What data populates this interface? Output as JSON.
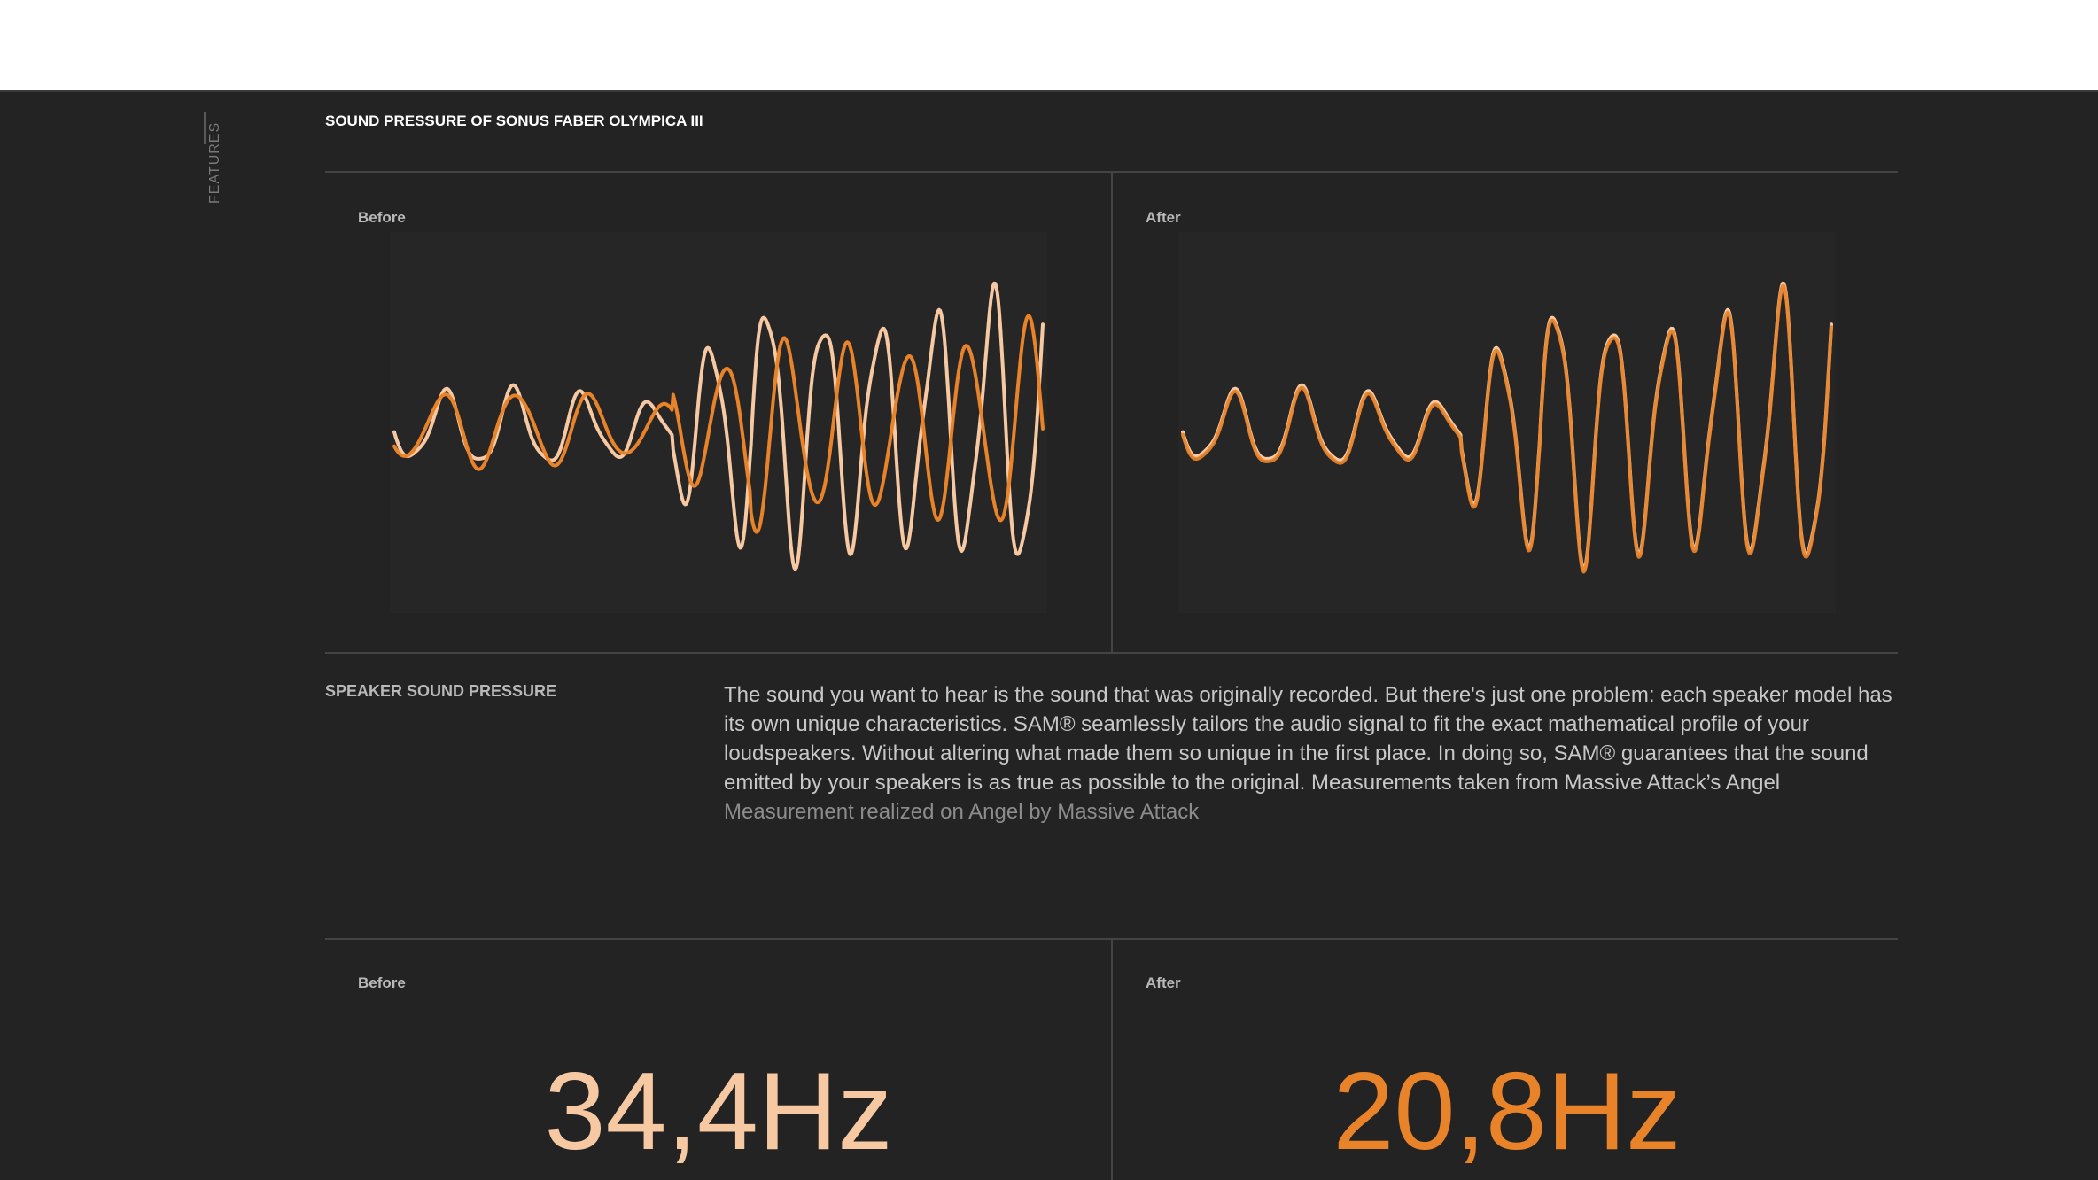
{
  "colors": {
    "background": "#232323",
    "accent": "#e8832a",
    "accent_light": "#f6c9a3",
    "line": "#444444"
  },
  "sidebar": {
    "label": "FEATURES"
  },
  "section": {
    "title": "SOUND PRESSURE OF SONUS FABER OLYMPICA III"
  },
  "charts": {
    "before_label": "Before",
    "after_label": "After"
  },
  "description": {
    "title": "SPEAKER SOUND PRESSURE",
    "body": "The sound you want to hear is the sound that was originally recorded. But there's just one problem: each speaker model has its own unique characteristics. SAM® seamlessly tailors the audio signal to fit the exact mathematical profile of your loudspeakers. Without altering what made them so unique in the first place. In doing so, SAM® guarantees that the sound emitted by your speakers is as true as possible to the original. Measurements taken from Massive Attack’s Angel",
    "note": "Measurement realized on Angel by Massive Attack"
  },
  "frequency": {
    "before_label": "Before",
    "after_label": "After",
    "before_value": "34,4Hz",
    "after_value": "20,8Hz"
  }
}
